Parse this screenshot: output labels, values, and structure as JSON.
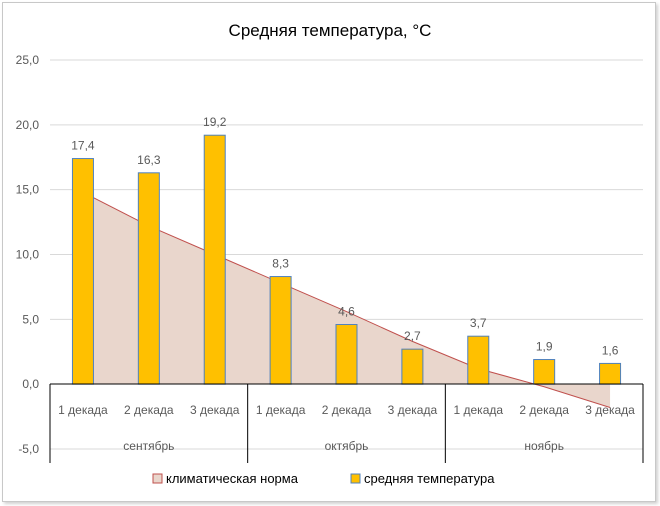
{
  "chart_data": {
    "type": "bar",
    "title": "Средняя температура, °С",
    "categories": [
      "1 декада",
      "2 декада",
      "3 декада",
      "1 декада",
      "2 декада",
      "3 декада",
      "1 декада",
      "2 декада",
      "3 декада"
    ],
    "groups": [
      {
        "label": "сентябрь",
        "start": 0,
        "end": 2
      },
      {
        "label": "октябрь",
        "start": 3,
        "end": 5
      },
      {
        "label": "ноябрь",
        "start": 6,
        "end": 8
      }
    ],
    "series": [
      {
        "name": "климатическая норма",
        "type": "area",
        "values": [
          14.8,
          12.2,
          10.0,
          7.8,
          5.6,
          3.3,
          1.2,
          -0.2,
          -1.8
        ],
        "fill": "#e9d6cc",
        "stroke": "#c0504d"
      },
      {
        "name": "средняя температура",
        "type": "bar",
        "values": [
          17.4,
          16.3,
          19.2,
          8.3,
          4.6,
          2.7,
          3.7,
          1.9,
          1.6
        ],
        "data_labels": [
          "17,4",
          "16,3",
          "19,2",
          "8,3",
          "4,6",
          "2,7",
          "3,7",
          "1,9",
          "1,6"
        ],
        "fill": "#ffc000",
        "stroke": "#4f81bd"
      }
    ],
    "yticks": [
      25,
      20,
      15,
      10,
      5,
      0,
      -5
    ],
    "ytick_labels": [
      "25,0",
      "20,0",
      "15,0",
      "10,0",
      "5,0",
      "0,0",
      "-5,0"
    ],
    "ylim": [
      -5,
      25
    ],
    "grid": true,
    "legend_position": "bottom",
    "gridline_color": "#d9d9d9"
  }
}
